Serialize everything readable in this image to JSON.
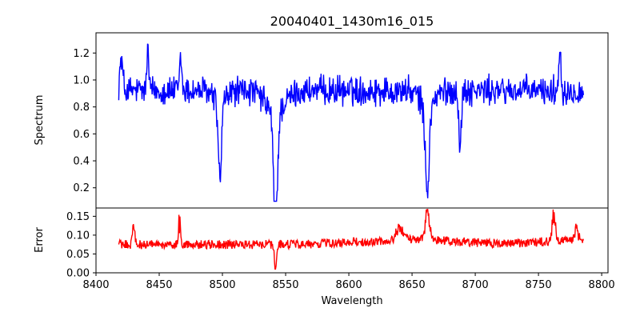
{
  "chart_data": [
    {
      "type": "line",
      "title": "20040401_1430m16_015",
      "xlabel": "",
      "ylabel": "Spectrum",
      "xlim": [
        8400,
        8805
      ],
      "ylim": [
        0.05,
        1.35
      ],
      "yticks": [
        0.2,
        0.4,
        0.6,
        0.8,
        1.0,
        1.2
      ],
      "ytick_labels": [
        "0.2",
        "0.4",
        "0.6",
        "0.8",
        "1.0",
        "1.2"
      ],
      "grid": false,
      "series": [
        {
          "color": "#0000ff",
          "x_start": 8418,
          "x_step": 0.4,
          "x_count": 920,
          "continuum": 0.92,
          "noise_amplitude": 0.09,
          "features": [
            {
              "center": 8420,
              "depth": -0.22,
              "width": 1.2
            },
            {
              "center": 8498,
              "depth": 0.57,
              "width": 1.3
            },
            {
              "center": 8542,
              "depth": 0.82,
              "width": 1.6
            },
            {
              "center": 8662,
              "depth": 0.64,
              "width": 1.6
            },
            {
              "center": 8688,
              "depth": 0.42,
              "width": 1.0
            },
            {
              "center": 8467,
              "depth": -0.25,
              "width": 0.8
            },
            {
              "center": 8441,
              "depth": -0.3,
              "width": 0.8
            },
            {
              "center": 8767,
              "depth": -0.35,
              "width": 0.8
            }
          ]
        }
      ]
    },
    {
      "type": "line",
      "title": "",
      "xlabel": "Wavelength",
      "ylabel": "Error",
      "xlim": [
        8400,
        8805
      ],
      "ylim": [
        0.0,
        0.172
      ],
      "xticks": [
        8400,
        8450,
        8500,
        8550,
        8600,
        8650,
        8700,
        8750,
        8800
      ],
      "xtick_labels": [
        "8400",
        "8450",
        "8500",
        "8550",
        "8600",
        "8650",
        "8700",
        "8750",
        "8800"
      ],
      "yticks": [
        0.0,
        0.05,
        0.1,
        0.15
      ],
      "ytick_labels": [
        "0.00",
        "0.05",
        "0.10",
        "0.15"
      ],
      "grid": false,
      "series": [
        {
          "color": "#ff0000",
          "x_start": 8418,
          "x_step": 0.4,
          "x_count": 920,
          "baseline": 0.075,
          "noise_amplitude": 0.012,
          "features": [
            {
              "center": 8430,
              "height": 0.055,
              "width": 0.9
            },
            {
              "center": 8466,
              "height": 0.06,
              "width": 0.8
            },
            {
              "center": 8542,
              "height": -0.065,
              "width": 0.7
            },
            {
              "center": 8662,
              "height": 0.085,
              "width": 1.8
            },
            {
              "center": 8640,
              "height": 0.04,
              "width": 2.5
            },
            {
              "center": 8762,
              "height": 0.075,
              "width": 1.2
            },
            {
              "center": 8780,
              "height": 0.04,
              "width": 1.5
            }
          ]
        }
      ]
    }
  ]
}
